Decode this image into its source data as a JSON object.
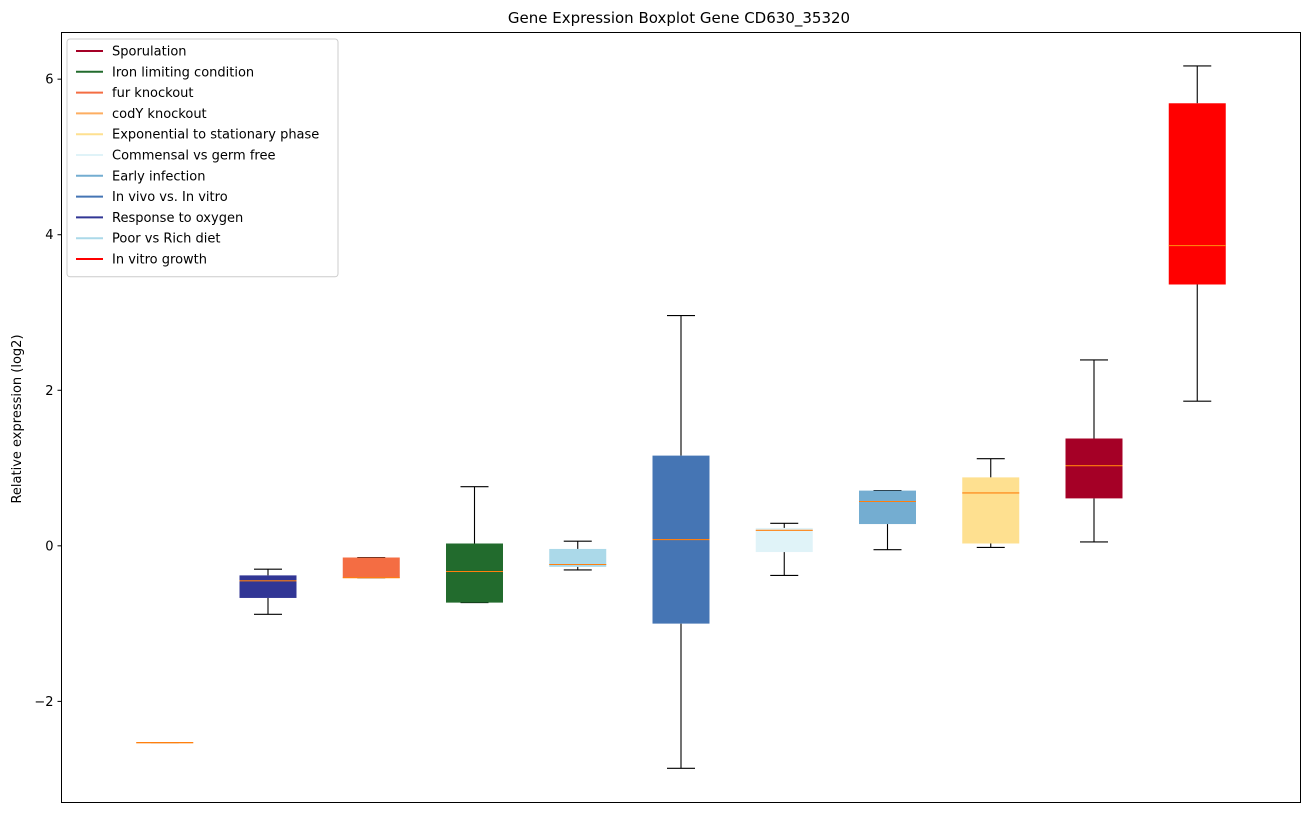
{
  "chart_data": {
    "type": "boxplot",
    "title": "Gene Expression Boxplot Gene CD630_35320",
    "xlabel": "",
    "ylabel": "Relative expression (log2)",
    "ylim": [
      -3.3,
      6.6
    ],
    "yticks": [
      -2,
      0,
      2,
      4,
      6
    ],
    "ytick_labels": [
      "−2",
      "0",
      "2",
      "4",
      "6"
    ],
    "grid": false,
    "legend_position": "upper-left",
    "legend": [
      {
        "label": "Sporulation",
        "color": "#a50026"
      },
      {
        "label": "Iron limiting condition",
        "color": "#226b2d"
      },
      {
        "label": "fur knockout",
        "color": "#f46d43"
      },
      {
        "label": "codY knockout",
        "color": "#fdae61"
      },
      {
        "label": "Exponential to stationary phase",
        "color": "#fee090"
      },
      {
        "label": "Commensal vs germ free",
        "color": "#e0f3f8"
      },
      {
        "label": "Early infection",
        "color": "#74add1"
      },
      {
        "label": "In vivo vs. In vitro",
        "color": "#4575b4"
      },
      {
        "label": "Response to oxygen",
        "color": "#313695"
      },
      {
        "label": "Poor vs Rich diet",
        "color": "#abd9e9"
      },
      {
        "label": "In vitro growth",
        "color": "#ff0000"
      }
    ],
    "median_color": "#ff7f0e",
    "boxes": [
      {
        "group": "codY knockout",
        "color": "#fdae61",
        "whisker_low": -2.53,
        "q1": -2.53,
        "median": -2.53,
        "q3": -2.53,
        "whisker_high": -2.53
      },
      {
        "group": "Response to oxygen",
        "color": "#313695",
        "whisker_low": -0.88,
        "q1": -0.67,
        "median": -0.45,
        "q3": -0.38,
        "whisker_high": -0.3
      },
      {
        "group": "fur knockout",
        "color": "#f46d43",
        "whisker_low": -0.41,
        "q1": -0.41,
        "median": -0.41,
        "q3": -0.15,
        "whisker_high": -0.15
      },
      {
        "group": "Iron limiting condition",
        "color": "#226b2d",
        "whisker_low": -0.73,
        "q1": -0.73,
        "median": -0.33,
        "q3": 0.03,
        "whisker_high": 0.76
      },
      {
        "group": "Poor vs Rich diet",
        "color": "#abd9e9",
        "whisker_low": -0.31,
        "q1": -0.27,
        "median": -0.24,
        "q3": -0.04,
        "whisker_high": 0.06
      },
      {
        "group": "In vivo vs. In vitro",
        "color": "#4575b4",
        "whisker_low": -2.86,
        "q1": -1.0,
        "median": 0.08,
        "q3": 1.16,
        "whisker_high": 2.96
      },
      {
        "group": "Commensal vs germ free",
        "color": "#e0f3f8",
        "whisker_low": -0.38,
        "q1": -0.08,
        "median": 0.2,
        "q3": 0.23,
        "whisker_high": 0.29
      },
      {
        "group": "Early infection",
        "color": "#74add1",
        "whisker_low": -0.05,
        "q1": 0.28,
        "median": 0.57,
        "q3": 0.71,
        "whisker_high": 0.71
      },
      {
        "group": "Exponential to stationary phase",
        "color": "#fee090",
        "whisker_low": -0.02,
        "q1": 0.03,
        "median": 0.68,
        "q3": 0.88,
        "whisker_high": 1.12
      },
      {
        "group": "Sporulation",
        "color": "#a50026",
        "whisker_low": 0.05,
        "q1": 0.61,
        "median": 1.03,
        "q3": 1.38,
        "whisker_high": 2.39
      },
      {
        "group": "In vitro growth",
        "color": "#ff0000",
        "whisker_low": 1.86,
        "q1": 3.36,
        "median": 3.86,
        "q3": 5.69,
        "whisker_high": 6.17
      }
    ]
  }
}
